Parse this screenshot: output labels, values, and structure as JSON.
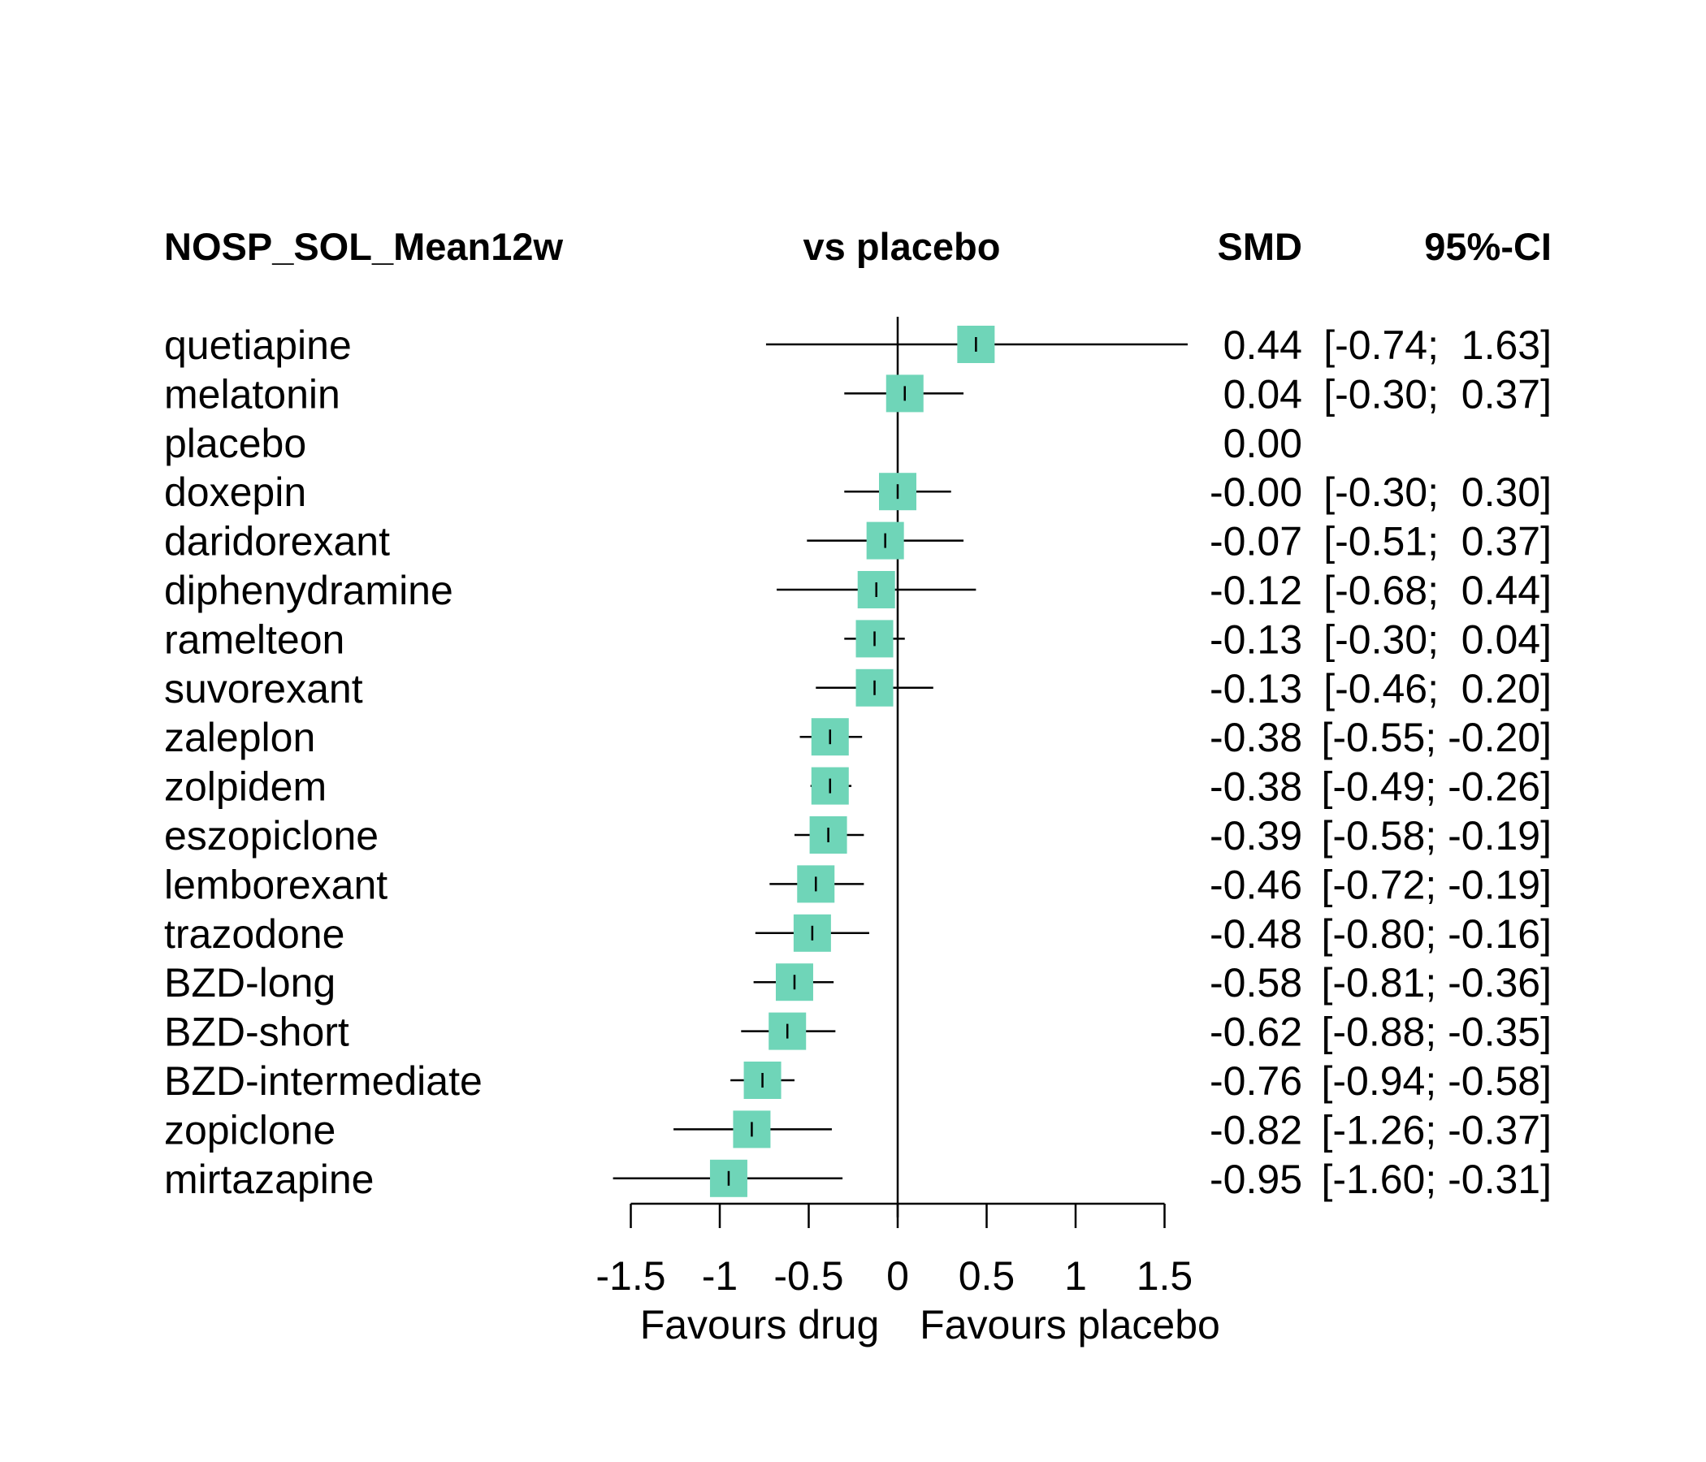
{
  "chart_data": {
    "type": "forest",
    "title": "NOSP_SOL_Mean12w",
    "comparison_header": "vs placebo",
    "estimate_header": "SMD",
    "ci_header": "95%-CI",
    "xlabel_left": "Favours drug",
    "xlabel_right": "Favours placebo",
    "xlim": [
      -1.5,
      1.5
    ],
    "xticks": [
      -1.5,
      -1,
      -0.5,
      0,
      0.5,
      1,
      1.5
    ],
    "xtick_labels": [
      "-1.5",
      "-1",
      "-0.5",
      "0",
      "0.5",
      "1",
      "1.5"
    ],
    "reference_line": 0,
    "marker_color": "#6fd5b8",
    "rows": [
      {
        "label": "quetiapine",
        "smd": 0.44,
        "lo": -0.74,
        "hi": 1.63,
        "smd_text": "0.44",
        "ci_text": "[-0.74;  1.63]"
      },
      {
        "label": "melatonin",
        "smd": 0.04,
        "lo": -0.3,
        "hi": 0.37,
        "smd_text": "0.04",
        "ci_text": "[-0.30;  0.37]"
      },
      {
        "label": "placebo",
        "smd": 0.0,
        "lo": null,
        "hi": null,
        "smd_text": "0.00",
        "ci_text": ""
      },
      {
        "label": "doxepin",
        "smd": -0.0,
        "lo": -0.3,
        "hi": 0.3,
        "smd_text": "-0.00",
        "ci_text": "[-0.30;  0.30]"
      },
      {
        "label": "daridorexant",
        "smd": -0.07,
        "lo": -0.51,
        "hi": 0.37,
        "smd_text": "-0.07",
        "ci_text": "[-0.51;  0.37]"
      },
      {
        "label": "diphenydramine",
        "smd": -0.12,
        "lo": -0.68,
        "hi": 0.44,
        "smd_text": "-0.12",
        "ci_text": "[-0.68;  0.44]"
      },
      {
        "label": "ramelteon",
        "smd": -0.13,
        "lo": -0.3,
        "hi": 0.04,
        "smd_text": "-0.13",
        "ci_text": "[-0.30;  0.04]"
      },
      {
        "label": "suvorexant",
        "smd": -0.13,
        "lo": -0.46,
        "hi": 0.2,
        "smd_text": "-0.13",
        "ci_text": "[-0.46;  0.20]"
      },
      {
        "label": "zaleplon",
        "smd": -0.38,
        "lo": -0.55,
        "hi": -0.2,
        "smd_text": "-0.38",
        "ci_text": "[-0.55; -0.20]"
      },
      {
        "label": "zolpidem",
        "smd": -0.38,
        "lo": -0.49,
        "hi": -0.26,
        "smd_text": "-0.38",
        "ci_text": "[-0.49; -0.26]"
      },
      {
        "label": "eszopiclone",
        "smd": -0.39,
        "lo": -0.58,
        "hi": -0.19,
        "smd_text": "-0.39",
        "ci_text": "[-0.58; -0.19]"
      },
      {
        "label": "lemborexant",
        "smd": -0.46,
        "lo": -0.72,
        "hi": -0.19,
        "smd_text": "-0.46",
        "ci_text": "[-0.72; -0.19]"
      },
      {
        "label": "trazodone",
        "smd": -0.48,
        "lo": -0.8,
        "hi": -0.16,
        "smd_text": "-0.48",
        "ci_text": "[-0.80; -0.16]"
      },
      {
        "label": "BZD-long",
        "smd": -0.58,
        "lo": -0.81,
        "hi": -0.36,
        "smd_text": "-0.58",
        "ci_text": "[-0.81; -0.36]"
      },
      {
        "label": "BZD-short",
        "smd": -0.62,
        "lo": -0.88,
        "hi": -0.35,
        "smd_text": "-0.62",
        "ci_text": "[-0.88; -0.35]"
      },
      {
        "label": "BZD-intermediate",
        "smd": -0.76,
        "lo": -0.94,
        "hi": -0.58,
        "smd_text": "-0.76",
        "ci_text": "[-0.94; -0.58]"
      },
      {
        "label": "zopiclone",
        "smd": -0.82,
        "lo": -1.26,
        "hi": -0.37,
        "smd_text": "-0.82",
        "ci_text": "[-1.26; -0.37]"
      },
      {
        "label": "mirtazapine",
        "smd": -0.95,
        "lo": -1.6,
        "hi": -0.31,
        "smd_text": "-0.95",
        "ci_text": "[-1.60; -0.31]"
      }
    ]
  }
}
